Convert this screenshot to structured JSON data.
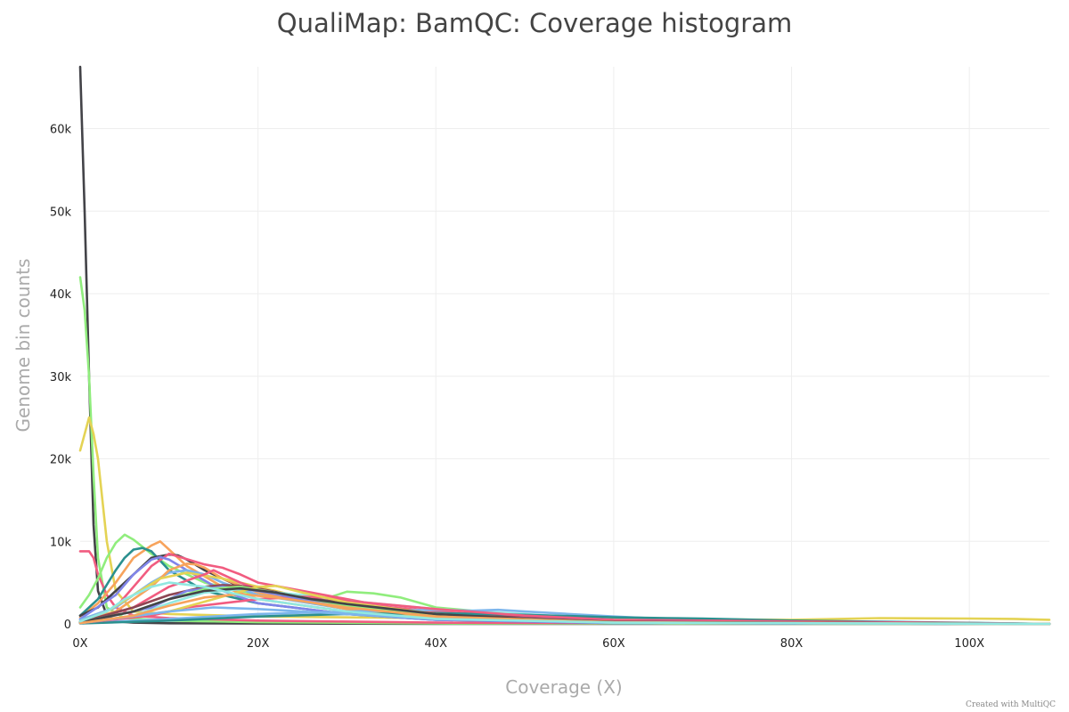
{
  "chart_data": {
    "type": "line",
    "title": "QualiMap: BamQC: Coverage histogram",
    "xlabel": "Coverage (X)",
    "ylabel": "Genome bin counts",
    "xlim": [
      0,
      109
    ],
    "ylim": [
      0,
      67500
    ],
    "x_ticks": [
      0,
      20,
      40,
      60,
      80,
      100
    ],
    "x_tick_labels": [
      "0X",
      "20X",
      "40X",
      "60X",
      "80X",
      "100X"
    ],
    "y_ticks": [
      0,
      10000,
      20000,
      30000,
      40000,
      50000,
      60000
    ],
    "y_tick_labels": [
      "0",
      "10k",
      "20k",
      "30k",
      "40k",
      "50k",
      "60k"
    ],
    "grid": true,
    "legend": "none",
    "series": [
      {
        "color": "#434348",
        "x": [
          0,
          0.5,
          1,
          1.5,
          2,
          3,
          4,
          6,
          10,
          20,
          40,
          109
        ],
        "y": [
          67500,
          50000,
          30000,
          12000,
          4000,
          1000,
          300,
          150,
          80,
          40,
          10,
          0
        ]
      },
      {
        "color": "#90ed7d",
        "x": [
          0,
          0.5,
          1,
          1.5,
          2,
          3,
          5,
          10,
          20,
          40,
          109
        ],
        "y": [
          42000,
          38000,
          30000,
          18000,
          8000,
          2000,
          700,
          400,
          200,
          50,
          0
        ]
      },
      {
        "color": "#e4d354",
        "x": [
          0,
          0.5,
          1,
          1.5,
          2,
          3,
          4,
          6,
          10,
          20,
          40,
          60,
          80,
          90,
          100,
          105,
          109
        ],
        "y": [
          21000,
          23000,
          25000,
          23000,
          20000,
          10000,
          4000,
          1500,
          1200,
          900,
          700,
          600,
          500,
          700,
          650,
          600,
          500
        ]
      },
      {
        "color": "#f15c80",
        "x": [
          0,
          1,
          1.5,
          2,
          3,
          4,
          6,
          10,
          20,
          40,
          109
        ],
        "y": [
          8800,
          8800,
          8000,
          6000,
          3500,
          2000,
          1000,
          700,
          400,
          150,
          0
        ]
      },
      {
        "color": "#90ed7d",
        "x": [
          0,
          1,
          2,
          3,
          4,
          5,
          6,
          8,
          10,
          14,
          20,
          25,
          28,
          30,
          33,
          36,
          40,
          50,
          60,
          80,
          109
        ],
        "y": [
          2000,
          3500,
          5500,
          8000,
          9800,
          10800,
          10200,
          8500,
          7000,
          5000,
          3500,
          2800,
          3200,
          3900,
          3700,
          3200,
          2000,
          1000,
          500,
          150,
          0
        ]
      },
      {
        "color": "#f7a35c",
        "x": [
          0,
          2,
          4,
          6,
          8,
          9,
          10,
          12,
          16,
          20,
          30,
          40,
          60,
          109
        ],
        "y": [
          800,
          2500,
          5000,
          8000,
          9500,
          10000,
          9000,
          7000,
          4500,
          3000,
          1500,
          700,
          150,
          0
        ]
      },
      {
        "color": "#2b908f",
        "x": [
          0,
          2,
          4,
          5,
          6,
          7,
          8,
          10,
          14,
          20,
          30,
          40,
          60,
          109
        ],
        "y": [
          1000,
          3000,
          6500,
          8000,
          9000,
          9200,
          8800,
          6500,
          4000,
          2500,
          1200,
          500,
          100,
          0
        ]
      },
      {
        "color": "#434348",
        "x": [
          0,
          2,
          4,
          6,
          8,
          10,
          11,
          12,
          14,
          18,
          24,
          30,
          40,
          60,
          109
        ],
        "y": [
          1000,
          2000,
          4000,
          6000,
          8000,
          8400,
          8300,
          7800,
          6500,
          4500,
          3000,
          2000,
          1000,
          200,
          0
        ]
      },
      {
        "color": "#f15c80",
        "x": [
          0,
          4,
          6,
          8,
          10,
          14,
          16,
          18,
          20,
          25,
          30,
          35,
          40,
          50,
          70,
          109
        ],
        "y": [
          300,
          2000,
          4500,
          7000,
          8500,
          7200,
          6800,
          6000,
          5000,
          4000,
          3000,
          2000,
          1500,
          700,
          200,
          0
        ]
      },
      {
        "color": "#8085e9",
        "x": [
          0,
          4,
          6,
          8,
          9,
          10,
          12,
          16,
          20,
          30,
          40,
          60,
          109
        ],
        "y": [
          600,
          3500,
          6000,
          7800,
          8100,
          7800,
          6500,
          4000,
          2500,
          1200,
          500,
          100,
          0
        ]
      },
      {
        "color": "#7cb5ec",
        "x": [
          0,
          4,
          6,
          8,
          10,
          12,
          14,
          16,
          20,
          30,
          40,
          60,
          109
        ],
        "y": [
          500,
          2000,
          3500,
          5000,
          6200,
          6500,
          6000,
          5000,
          3500,
          1800,
          800,
          200,
          0
        ]
      },
      {
        "color": "#f7a35c",
        "x": [
          0,
          4,
          8,
          10,
          12,
          13,
          14,
          16,
          20,
          30,
          40,
          60,
          109
        ],
        "y": [
          300,
          1500,
          4500,
          6500,
          7300,
          7200,
          6800,
          5500,
          3800,
          1800,
          700,
          150,
          0
        ]
      },
      {
        "color": "#e4d354",
        "x": [
          0,
          3,
          6,
          9,
          12,
          16,
          20,
          25,
          30,
          40,
          60,
          109
        ],
        "y": [
          300,
          1500,
          3500,
          5500,
          6200,
          5500,
          4500,
          3200,
          2000,
          800,
          150,
          0
        ]
      },
      {
        "color": "#f15c80",
        "x": [
          0,
          6,
          10,
          14,
          15,
          16,
          18,
          20,
          24,
          30,
          40,
          50,
          60,
          109
        ],
        "y": [
          100,
          2000,
          4500,
          6000,
          6500,
          6000,
          5000,
          4200,
          3500,
          2500,
          1500,
          800,
          300,
          0
        ]
      },
      {
        "color": "#8d4653",
        "x": [
          0,
          6,
          10,
          14,
          16,
          18,
          20,
          25,
          30,
          40,
          60,
          109
        ],
        "y": [
          200,
          2000,
          3500,
          4500,
          4700,
          4600,
          4300,
          3200,
          2500,
          1200,
          300,
          0
        ]
      },
      {
        "color": "#91e8e1",
        "x": [
          0,
          6,
          10,
          14,
          18,
          20,
          25,
          30,
          40,
          50,
          60,
          109
        ],
        "y": [
          100,
          1000,
          2500,
          3800,
          4200,
          4000,
          3500,
          2800,
          1800,
          1200,
          500,
          0
        ]
      },
      {
        "color": "#7cb5ec",
        "x": [
          0,
          10,
          20,
          30,
          35,
          40,
          44,
          47,
          50,
          55,
          60,
          70,
          109
        ],
        "y": [
          50,
          600,
          1200,
          1500,
          1600,
          1700,
          1600,
          1700,
          1500,
          1200,
          900,
          400,
          0
        ]
      },
      {
        "color": "#2b908f",
        "x": [
          0,
          10,
          20,
          30,
          40,
          50,
          60,
          66,
          70,
          80,
          109
        ],
        "y": [
          50,
          400,
          900,
          1200,
          1300,
          1100,
          800,
          700,
          650,
          400,
          0
        ]
      },
      {
        "color": "#f15c80",
        "x": [
          0,
          8,
          12,
          20,
          25,
          28,
          30,
          35,
          40,
          50,
          60,
          109
        ],
        "y": [
          100,
          1000,
          2000,
          3000,
          3300,
          3200,
          2800,
          2300,
          1800,
          1000,
          500,
          0
        ]
      },
      {
        "color": "#8085e9",
        "x": [
          0,
          8,
          12,
          16,
          20,
          25,
          30,
          40,
          60,
          109
        ],
        "y": [
          100,
          2000,
          4000,
          4500,
          4000,
          3000,
          2000,
          1000,
          250,
          0
        ]
      },
      {
        "color": "#90ed7d",
        "x": [
          0,
          6,
          10,
          14,
          18,
          22,
          30,
          40,
          60,
          109
        ],
        "y": [
          200,
          1500,
          3000,
          4200,
          4500,
          3800,
          2200,
          1000,
          200,
          0
        ]
      },
      {
        "color": "#e4d354",
        "x": [
          0,
          10,
          15,
          20,
          22,
          25,
          30,
          40,
          50,
          60,
          109
        ],
        "y": [
          100,
          1500,
          3000,
          4500,
          4600,
          3800,
          2600,
          1200,
          500,
          150,
          0
        ]
      },
      {
        "color": "#7cb5ec",
        "x": [
          0,
          5,
          10,
          15,
          20,
          30,
          40,
          60,
          109
        ],
        "y": [
          100,
          800,
          1500,
          2000,
          1800,
          1200,
          600,
          150,
          0
        ]
      },
      {
        "color": "#434348",
        "x": [
          0,
          6,
          10,
          14,
          18,
          22,
          26,
          30,
          35,
          40,
          50,
          60,
          109
        ],
        "y": [
          200,
          1500,
          3000,
          4000,
          4300,
          3800,
          3000,
          2400,
          1800,
          1200,
          600,
          250,
          0
        ]
      },
      {
        "color": "#f7a35c",
        "x": [
          0,
          6,
          10,
          14,
          18,
          22,
          30,
          40,
          60,
          109
        ],
        "y": [
          100,
          1000,
          2200,
          3200,
          3600,
          3200,
          2000,
          900,
          200,
          0
        ]
      },
      {
        "color": "#91e8e1",
        "x": [
          0,
          3,
          5,
          8,
          10,
          14,
          20,
          30,
          40,
          60,
          109
        ],
        "y": [
          300,
          1500,
          3000,
          4500,
          5000,
          4500,
          3000,
          1500,
          600,
          150,
          0
        ]
      }
    ]
  }
}
